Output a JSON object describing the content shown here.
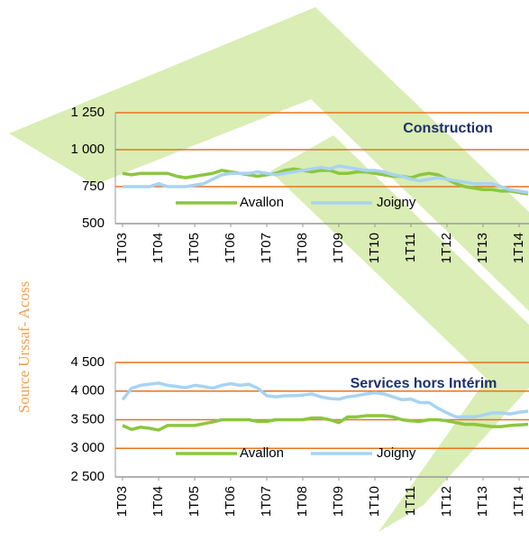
{
  "source": "Source Urssaf- Acoss",
  "chart_data": [
    {
      "type": "line",
      "title": "Construction",
      "categories": [
        "1T03",
        null,
        null,
        null,
        "1T04",
        null,
        null,
        null,
        "1T05",
        null,
        null,
        null,
        "1T06",
        null,
        null,
        null,
        "1T07",
        null,
        null,
        null,
        "1T08",
        null,
        null,
        null,
        "1T09",
        null,
        null,
        null,
        "1T10",
        null,
        null,
        null,
        "1T11",
        null,
        null,
        null,
        "1T12",
        null,
        null,
        null,
        "1T13",
        null,
        null,
        null,
        "1T14",
        null
      ],
      "series": [
        {
          "name": "Avallon",
          "color": "#8cc63f",
          "values": [
            840,
            830,
            840,
            840,
            840,
            840,
            820,
            810,
            820,
            830,
            840,
            860,
            850,
            840,
            830,
            820,
            830,
            840,
            860,
            870,
            860,
            850,
            860,
            860,
            840,
            840,
            850,
            850,
            840,
            830,
            820,
            820,
            810,
            830,
            840,
            830,
            800,
            770,
            750,
            740,
            730,
            730,
            720,
            720,
            710,
            700
          ]
        },
        {
          "name": "Joigny",
          "color": "#a9d3f2",
          "values": [
            750,
            750,
            750,
            750,
            770,
            750,
            750,
            750,
            760,
            770,
            800,
            830,
            840,
            840,
            840,
            850,
            840,
            830,
            840,
            850,
            860,
            870,
            880,
            870,
            890,
            880,
            870,
            860,
            860,
            850,
            830,
            820,
            800,
            790,
            800,
            810,
            800,
            790,
            780,
            770,
            770,
            770,
            750,
            730,
            720,
            710
          ]
        }
      ],
      "ylim": [
        500,
        1250
      ],
      "yticks": [
        {
          "value": 500,
          "label": "500"
        },
        {
          "value": 750,
          "label": "750"
        },
        {
          "value": 1000,
          "label": "1 000"
        },
        {
          "value": 1250,
          "label": "1 250"
        }
      ],
      "grid": true
    },
    {
      "type": "line",
      "title": "Services hors Intérim",
      "categories": [
        "1T03",
        null,
        null,
        null,
        "1T04",
        null,
        null,
        null,
        "1T05",
        null,
        null,
        null,
        "1T06",
        null,
        null,
        null,
        "1T07",
        null,
        null,
        null,
        "1T08",
        null,
        null,
        null,
        "1T09",
        null,
        null,
        null,
        "1T10",
        null,
        null,
        null,
        "1T11",
        null,
        null,
        null,
        "1T12",
        null,
        null,
        null,
        "1T13",
        null,
        null,
        null,
        "1T14",
        null
      ],
      "series": [
        {
          "name": "Avallon",
          "color": "#8cc63f",
          "values": [
            3400,
            3330,
            3370,
            3350,
            3320,
            3400,
            3400,
            3400,
            3400,
            3430,
            3460,
            3500,
            3500,
            3500,
            3500,
            3470,
            3470,
            3500,
            3500,
            3500,
            3500,
            3530,
            3530,
            3500,
            3450,
            3550,
            3550,
            3570,
            3570,
            3570,
            3550,
            3500,
            3480,
            3470,
            3500,
            3500,
            3480,
            3450,
            3420,
            3420,
            3400,
            3380,
            3380,
            3400,
            3410,
            3420
          ]
        },
        {
          "name": "Joigny",
          "color": "#a9d3f2",
          "values": [
            3850,
            4050,
            4100,
            4120,
            4140,
            4100,
            4080,
            4060,
            4100,
            4080,
            4050,
            4100,
            4130,
            4100,
            4120,
            4050,
            3920,
            3900,
            3920,
            3920,
            3930,
            3950,
            3900,
            3870,
            3860,
            3900,
            3920,
            3950,
            3970,
            3950,
            3900,
            3850,
            3860,
            3800,
            3800,
            3700,
            3620,
            3550,
            3550,
            3550,
            3580,
            3620,
            3620,
            3600,
            3630,
            3650
          ]
        }
      ],
      "ylim": [
        2500,
        4500
      ],
      "yticks": [
        {
          "value": 2500,
          "label": "2 500"
        },
        {
          "value": 3000,
          "label": "3 000"
        },
        {
          "value": 3500,
          "label": "3 500"
        },
        {
          "value": 4000,
          "label": "4 000"
        },
        {
          "value": 4500,
          "label": "4 500"
        }
      ],
      "grid": true
    }
  ]
}
